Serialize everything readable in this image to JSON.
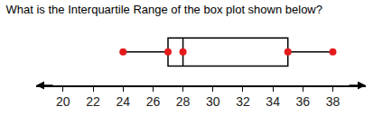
{
  "chart_data": {
    "type": "box",
    "title": "What is the Interquartile Range of the box plot shown below?",
    "min": 24,
    "q1": 27,
    "median": 28,
    "q3": 35,
    "max": 38,
    "color": "#e31a1c",
    "marker": "circle",
    "xlim": [
      18.2,
      40.2
    ],
    "xticks": [
      20,
      22,
      24,
      26,
      28,
      30,
      32,
      34,
      36,
      38
    ],
    "grid": false
  }
}
